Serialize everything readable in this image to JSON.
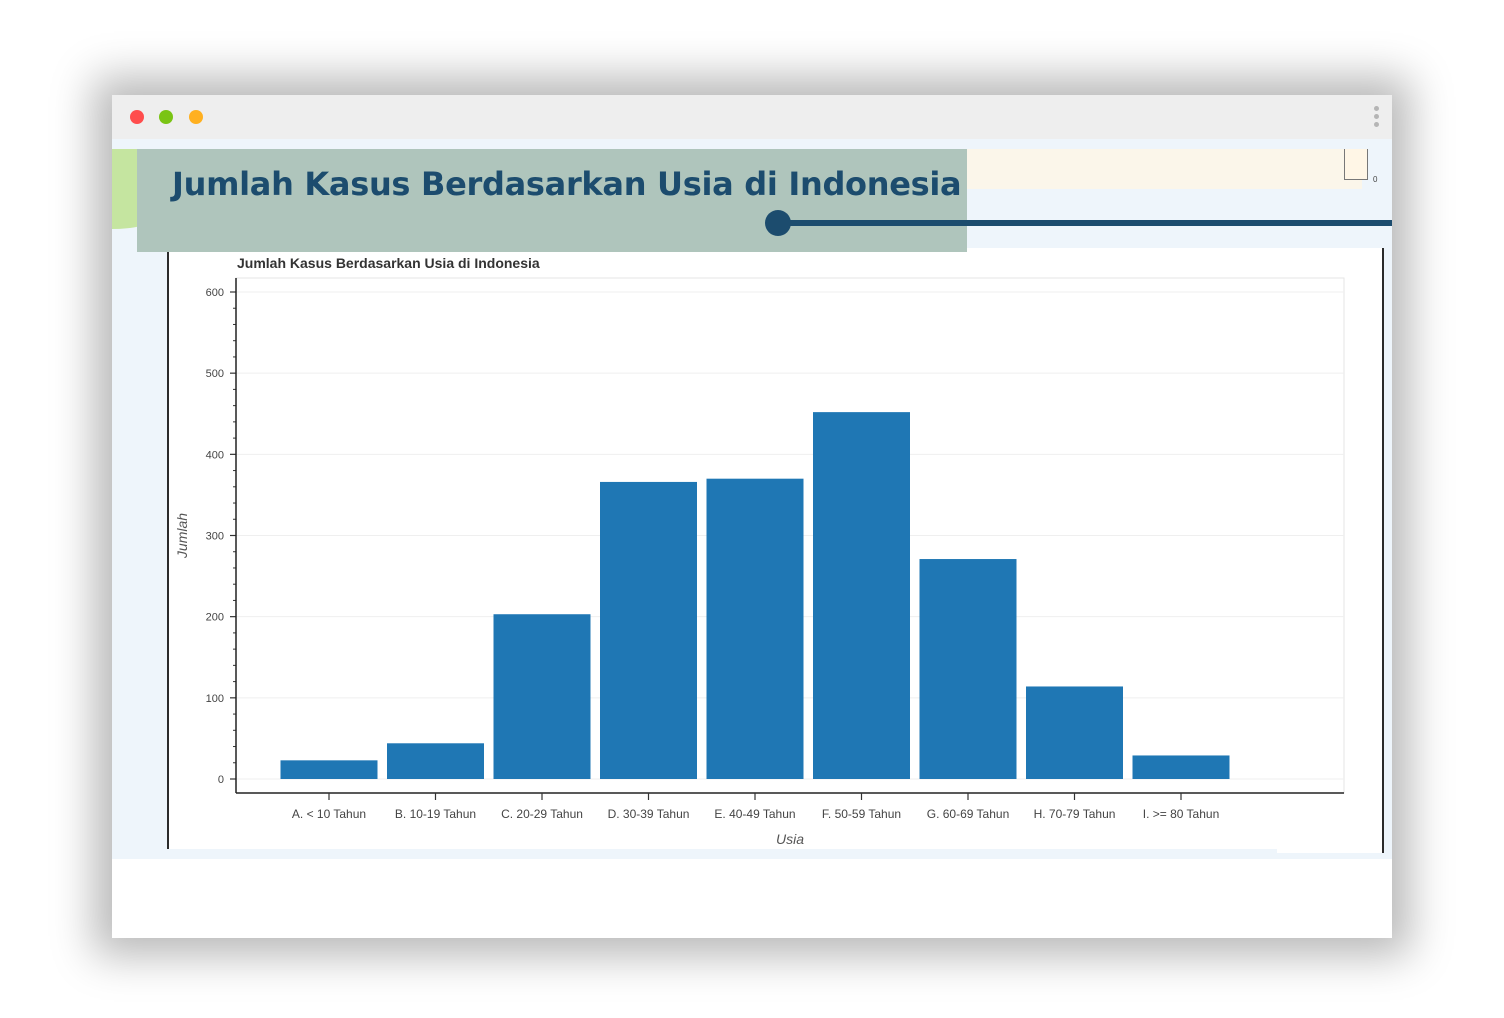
{
  "window": {
    "colors": {
      "close": "#ff4d4d",
      "minimize": "#7ac414",
      "maximize": "#ffb020"
    }
  },
  "banner": {
    "title": "Jumlah Kasus Berdasarkan Usia di Indonesia",
    "background": "#afc5bc",
    "text_color": "#1c4c6e"
  },
  "top_strip": {
    "corner_value": "0"
  },
  "toolbar": {
    "tools": [
      "bokeh-logo-icon",
      "pan-icon",
      "box-zoom-icon",
      "wheel-zoom-icon",
      "save-icon",
      "reset-icon",
      "help-icon",
      "hover-icon"
    ]
  },
  "chart_data": {
    "type": "bar",
    "title": "Jumlah Kasus Berdasarkan Usia di Indonesia",
    "xlabel": "Usia",
    "ylabel": "Jumlah",
    "categories": [
      "A. < 10 Tahun",
      "B. 10-19 Tahun",
      "C. 20-29 Tahun",
      "D. 30-39 Tahun",
      "E. 40-49 Tahun",
      "F. 50-59 Tahun",
      "G. 60-69 Tahun",
      "H. 70-79 Tahun",
      "I. >= 80 Tahun"
    ],
    "values": [
      23,
      44,
      203,
      366,
      370,
      452,
      271,
      114,
      29
    ],
    "ylim": [
      0,
      600
    ],
    "yticks": [
      0,
      100,
      200,
      300,
      400,
      500,
      600
    ],
    "bar_color": "#1f77b4",
    "grid": true
  }
}
